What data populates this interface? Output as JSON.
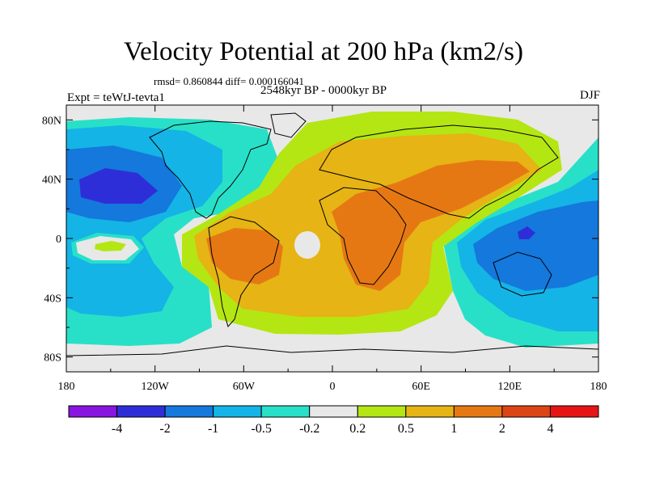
{
  "title": "Velocity Potential at 200 hPa (km2/s)",
  "stats": "rmsd= 0.860844 diff= 0.000166041",
  "subtitle": "2548kyr BP - 0000kyr BP",
  "left_label": "Expt = teWtJ-tevta1",
  "right_label": "DJF",
  "lat_ticks": [
    {
      "label": "80N",
      "value": 80
    },
    {
      "label": "40N",
      "value": 40
    },
    {
      "label": "0",
      "value": 0
    },
    {
      "label": "40S",
      "value": -40
    },
    {
      "label": "80S",
      "value": -80
    }
  ],
  "lon_ticks": [
    {
      "label": "180",
      "value": -180
    },
    {
      "label": "120W",
      "value": -120
    },
    {
      "label": "60W",
      "value": -60
    },
    {
      "label": "0",
      "value": 0
    },
    {
      "label": "60E",
      "value": 60
    },
    {
      "label": "120E",
      "value": 120
    },
    {
      "label": "180",
      "value": 180
    }
  ],
  "colorbar": {
    "colors": [
      "#8a14e0",
      "#2e2ed8",
      "#1478dc",
      "#14b4e6",
      "#28e0c8",
      "#e8e8e8",
      "#b4e614",
      "#e6b414",
      "#e67814",
      "#dc4614",
      "#e61414"
    ],
    "labels": [
      "-4",
      "-2",
      "-1",
      "-0.5",
      "-0.2",
      "0.2",
      "0.5",
      "1",
      "2",
      "4"
    ]
  }
}
